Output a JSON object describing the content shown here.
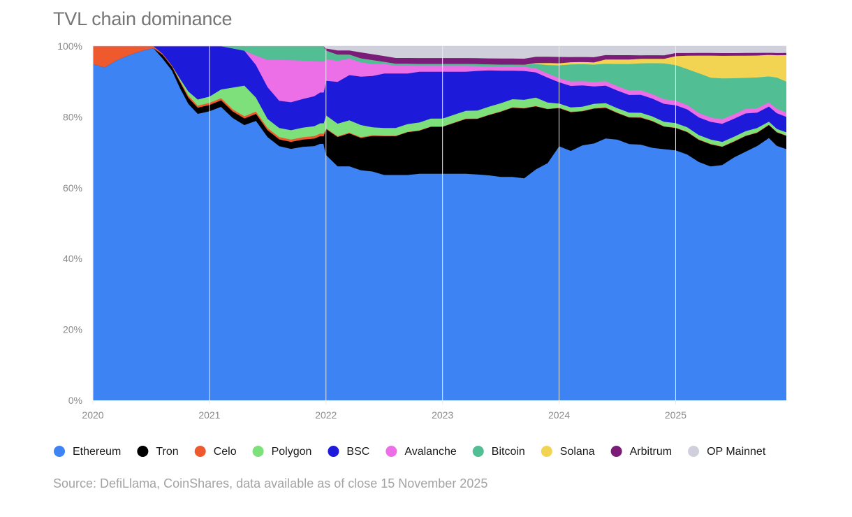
{
  "chart_data": {
    "type": "area",
    "stacked": true,
    "normalized": true,
    "title": "TVL chain dominance",
    "source": "Source: DefiLlama, CoinShares, data available as of close 15 November 2025",
    "xlabel": "",
    "ylabel": "",
    "ylim": [
      0,
      100
    ],
    "xlim": [
      2020.0,
      2025.95
    ],
    "y_ticks": [
      0,
      20,
      40,
      60,
      80,
      100
    ],
    "y_tick_labels": [
      "0%",
      "20%",
      "40%",
      "60%",
      "80%",
      "100%"
    ],
    "x_ticks": [
      2020,
      2021,
      2022,
      2023,
      2024,
      2025
    ],
    "x_tick_labels": [
      "2020",
      "2021",
      "2022",
      "2023",
      "2024",
      "2025"
    ],
    "grid": "horizontal",
    "legend_position": "bottom",
    "x": [
      2020.0,
      2020.1,
      2020.2,
      2020.27,
      2020.35,
      2020.45,
      2020.52,
      2020.6,
      2020.68,
      2020.75,
      2020.82,
      2020.9,
      2021.0,
      2021.1,
      2021.2,
      2021.3,
      2021.4,
      2021.5,
      2021.6,
      2021.7,
      2021.8,
      2021.9,
      2021.95,
      2021.98,
      2022.0,
      2022.1,
      2022.2,
      2022.3,
      2022.4,
      2022.5,
      2022.6,
      2022.7,
      2022.8,
      2022.9,
      2023.0,
      2023.1,
      2023.2,
      2023.3,
      2023.4,
      2023.5,
      2023.6,
      2023.7,
      2023.8,
      2023.9,
      2024.0,
      2024.1,
      2024.2,
      2024.3,
      2024.4,
      2024.5,
      2024.6,
      2024.7,
      2024.8,
      2024.9,
      2025.0,
      2025.1,
      2025.2,
      2025.3,
      2025.4,
      2025.5,
      2025.6,
      2025.7,
      2025.8,
      2025.87,
      2025.95
    ],
    "series": [
      {
        "name": "Ethereum",
        "color": "#3d83f4",
        "values": [
          95,
          94,
          95,
          95,
          96,
          96,
          95,
          91,
          85,
          76,
          72,
          70,
          69,
          68,
          65,
          63,
          60,
          58,
          56,
          54,
          53,
          51,
          50,
          50,
          57,
          56,
          57,
          57,
          58,
          58,
          58,
          58,
          58,
          58,
          58,
          58,
          58,
          57,
          56,
          55,
          55,
          54,
          55,
          57,
          60,
          58,
          60,
          59,
          60,
          59,
          58,
          57,
          57,
          56,
          56,
          55,
          54,
          53,
          52,
          54,
          56,
          58,
          61,
          57,
          57
        ]
      },
      {
        "name": "Tron",
        "color": "#000000",
        "values": [
          0,
          0,
          0,
          0,
          0,
          0,
          0,
          1,
          1,
          1.5,
          1.5,
          1.5,
          1.5,
          1.5,
          1.5,
          1.5,
          1.5,
          1.5,
          1.5,
          1.5,
          1.5,
          1.5,
          1.5,
          1.5,
          6,
          7,
          8,
          8,
          9,
          10,
          10,
          11,
          11,
          12,
          12,
          13,
          14,
          14,
          15,
          16,
          17,
          17,
          15,
          13,
          9,
          9,
          8,
          8,
          7,
          6,
          6,
          6,
          6,
          5,
          5,
          5,
          5,
          5,
          4,
          3.5,
          3.5,
          3,
          3,
          3,
          3
        ]
      },
      {
        "name": "Celo",
        "color": "#ee5a2d",
        "values": [
          5,
          6,
          4,
          3,
          2,
          1,
          0.5,
          0.3,
          0.3,
          0.3,
          0.5,
          0.5,
          0.5,
          0.5,
          0.5,
          0.5,
          0.5,
          0.5,
          0.5,
          0.5,
          0.5,
          0.5,
          0.5,
          0.5,
          0.2,
          0.2,
          0.2,
          0.2,
          0.2,
          0.1,
          0.1,
          0.1,
          0.1,
          0.1,
          0.1,
          0.1,
          0.1,
          0.1,
          0.1,
          0.1,
          0.1,
          0.1,
          0.1,
          0.1,
          0.1,
          0.1,
          0.1,
          0.1,
          0.1,
          0.1,
          0.1,
          0.1,
          0.1,
          0.1,
          0.1,
          0.1,
          0.1,
          0.1,
          0.1,
          0.1,
          0.1,
          0.1,
          0.1,
          0.1,
          0.1
        ]
      },
      {
        "name": "Polygon",
        "color": "#7ee07a",
        "values": [
          0,
          0,
          0,
          0,
          0,
          0,
          0,
          0,
          0,
          0.5,
          1,
          1.5,
          1.5,
          2,
          5,
          7,
          3,
          2,
          2,
          2,
          2,
          2,
          2,
          2,
          3,
          3,
          3,
          3,
          2,
          2,
          2,
          2,
          2,
          2,
          2,
          2,
          2,
          2,
          2,
          2,
          2,
          2,
          2,
          1.5,
          1,
          1,
          1,
          1,
          1,
          1,
          1,
          1,
          1,
          1,
          1,
          1,
          1,
          1,
          1,
          1,
          1,
          1,
          0.7,
          0.7,
          0.7
        ]
      },
      {
        "name": "BSC",
        "color": "#1d1bd9",
        "values": [
          0,
          0,
          0,
          0,
          0,
          0,
          0,
          2,
          5,
          8,
          11,
          13,
          12,
          10,
          9,
          8,
          7,
          7,
          6,
          6,
          6,
          6,
          6,
          6,
          8,
          10,
          11,
          12,
          13,
          14,
          14,
          13,
          13,
          12,
          12,
          11,
          10,
          10,
          9,
          8,
          7,
          7,
          6,
          6,
          5,
          5,
          5,
          4,
          4,
          4,
          4,
          4,
          4,
          4,
          4,
          4,
          4,
          4,
          4,
          4,
          4,
          3.5,
          3.5,
          3.5,
          3.5
        ]
      },
      {
        "name": "Avalanche",
        "color": "#ec6fe8",
        "values": [
          0,
          0,
          0,
          0,
          0,
          0,
          0,
          0,
          0,
          0,
          0,
          0,
          0,
          0,
          0,
          0,
          2,
          6,
          9,
          9,
          8,
          7,
          6,
          6,
          5,
          5,
          4,
          3.5,
          3,
          2.5,
          2,
          2,
          1.5,
          1.5,
          1.5,
          1.5,
          1.5,
          1.2,
          1,
          1,
          1,
          1,
          1,
          1,
          1,
          1,
          1,
          1,
          1,
          1,
          1,
          1,
          1,
          1,
          1,
          1,
          1,
          1,
          1,
          1,
          1,
          1,
          1,
          1,
          1
        ]
      },
      {
        "name": "Bitcoin",
        "color": "#52be94",
        "values": [
          0,
          0,
          0,
          0,
          0,
          0,
          0,
          0,
          0,
          0,
          0,
          0,
          0,
          0,
          0.5,
          1,
          2,
          3,
          3,
          3,
          3,
          3,
          3,
          3,
          2,
          1.5,
          1,
          1,
          1,
          0.5,
          0.5,
          0.5,
          0.5,
          0.5,
          0.5,
          0.5,
          0.5,
          0.5,
          0.5,
          0.5,
          0.5,
          0.5,
          1,
          2,
          3,
          4,
          4,
          4,
          4,
          5,
          6,
          6,
          7,
          8,
          8,
          8,
          9,
          9,
          9,
          8,
          7,
          7,
          6,
          7,
          7
        ]
      },
      {
        "name": "Solana",
        "color": "#f2d452",
        "values": [
          0,
          0,
          0,
          0,
          0,
          0,
          0,
          0,
          0,
          0,
          0,
          0,
          0,
          0,
          0,
          0,
          0,
          0,
          0,
          0,
          0,
          0,
          0,
          0,
          0,
          0,
          0,
          0,
          0,
          0,
          0,
          0,
          0,
          0,
          0,
          0,
          0,
          0,
          0,
          0,
          0,
          0,
          0.2,
          0.5,
          0.5,
          0.5,
          0.5,
          0.5,
          1,
          1,
          1,
          1,
          1,
          1,
          2,
          3,
          4,
          5,
          5,
          5,
          5,
          5,
          5,
          5,
          6
        ]
      },
      {
        "name": "Arbitrum",
        "color": "#7b1d78",
        "values": [
          0,
          0,
          0,
          0,
          0,
          0,
          0,
          0,
          0,
          0,
          0,
          0,
          0,
          0,
          0,
          0,
          0,
          0,
          0,
          0,
          0,
          0,
          0,
          0,
          0.5,
          1,
          1,
          1.5,
          1.5,
          1.5,
          1.5,
          1.5,
          1.5,
          1.5,
          1.5,
          1.5,
          1.5,
          1.5,
          1.5,
          1.5,
          1.5,
          1.5,
          1.5,
          1.5,
          1.5,
          1.2,
          1.2,
          1.2,
          1,
          1,
          1,
          0.8,
          0.8,
          0.8,
          0.7,
          0.6,
          0.6,
          0.6,
          0.6,
          0.6,
          0.6,
          0.6,
          0.5,
          0.5,
          0.5
        ]
      },
      {
        "name": "OP Mainnet",
        "color": "#d0d0dc",
        "values": [
          0,
          0,
          0,
          0,
          0,
          0,
          0,
          0,
          0,
          0,
          0,
          0,
          0,
          0,
          0,
          0,
          0,
          0,
          0,
          0,
          0,
          0,
          0,
          0,
          0.5,
          1,
          1,
          1.5,
          2,
          2.5,
          3,
          3,
          3,
          3,
          3,
          3,
          3,
          3,
          3,
          3,
          3,
          3,
          2.5,
          2.5,
          2.5,
          2.5,
          2.5,
          2.5,
          2,
          2,
          2,
          2,
          2,
          2,
          1.5,
          1.5,
          1.5,
          1.5,
          1.5,
          1.5,
          1.5,
          1.5,
          1.5,
          1.5,
          1.5
        ]
      }
    ]
  }
}
